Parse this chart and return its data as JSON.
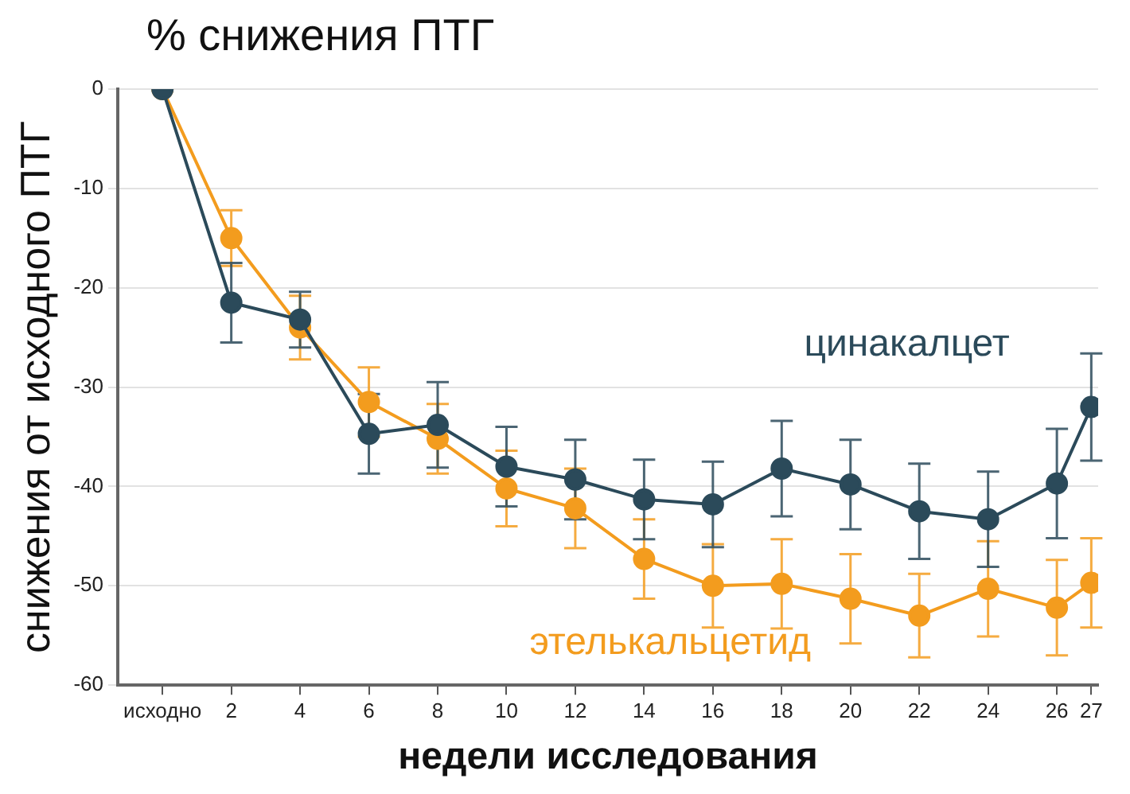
{
  "chart_data": {
    "type": "line",
    "title": "% снижения ПТГ",
    "xlabel": "недели исследования",
    "ylabel": "снижения от исходного ПТГ",
    "x": [
      0,
      2,
      4,
      6,
      8,
      10,
      12,
      14,
      16,
      18,
      20,
      22,
      24,
      26,
      27
    ],
    "xlim": [
      -1.3,
      27.2
    ],
    "xticks": [
      {
        "value": 0,
        "label": "исходно"
      },
      2,
      4,
      6,
      8,
      10,
      12,
      14,
      16,
      18,
      20,
      22,
      24,
      26,
      27
    ],
    "ylim": [
      -60,
      0
    ],
    "yticks": [
      0,
      -10,
      -20,
      -30,
      -40,
      -50,
      -60
    ],
    "series": [
      {
        "name": "этелькальцетид",
        "color": "#f39c1e",
        "values": [
          0,
          -15,
          -24,
          -31.5,
          -35.2,
          -40.2,
          -42.2,
          -47.3,
          -50,
          -49.8,
          -51.3,
          -53,
          -50.3,
          -52.2,
          -49.7
        ],
        "errors": [
          null,
          2.8,
          3.2,
          3.5,
          3.5,
          3.8,
          4,
          4,
          4.2,
          4.5,
          4.5,
          4.2,
          4.8,
          4.8,
          4.5
        ]
      },
      {
        "name": "цинакалцет",
        "color": "#2b4a5a",
        "values": [
          0,
          -21.5,
          -23.2,
          -34.7,
          -33.8,
          -38,
          -39.3,
          -41.3,
          -41.8,
          -38.2,
          -39.8,
          -42.5,
          -43.3,
          -39.7,
          -32
        ],
        "errors": [
          null,
          4,
          2.8,
          4,
          4.3,
          4,
          4,
          4,
          4.3,
          4.8,
          4.5,
          4.8,
          4.8,
          5.5,
          5.4
        ]
      }
    ],
    "grid": "y",
    "legend": false,
    "marker": "circle",
    "line_style": "solid"
  }
}
